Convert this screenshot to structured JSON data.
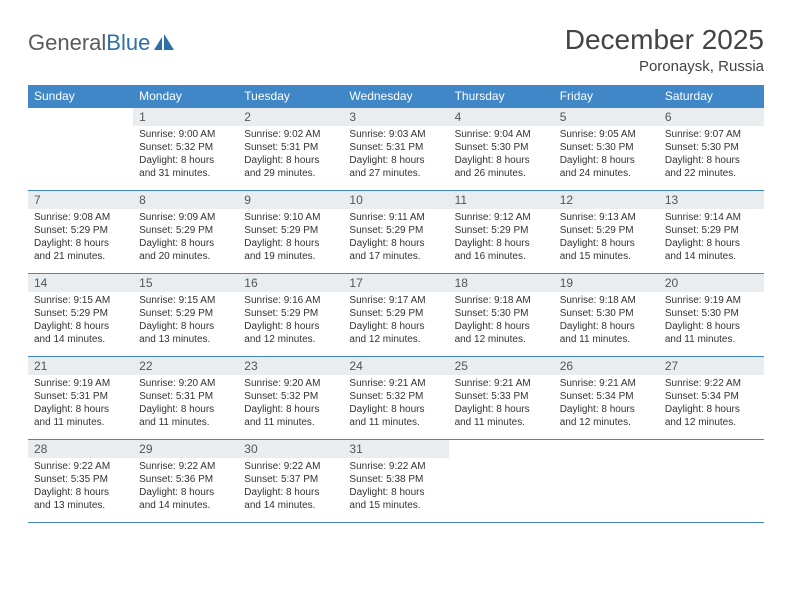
{
  "brand": {
    "part1": "General",
    "part2": "Blue"
  },
  "title": "December 2025",
  "location": "Poronaysk, Russia",
  "colors": {
    "header_bg": "#3f87c6",
    "header_fg": "#ffffff",
    "daynum_bg": "#e9edf0",
    "border": "#3f87c6",
    "brand_gray": "#5a5a5a",
    "brand_blue": "#2f6fa8"
  },
  "weekdays": [
    "Sunday",
    "Monday",
    "Tuesday",
    "Wednesday",
    "Thursday",
    "Friday",
    "Saturday"
  ],
  "weeks": [
    [
      {
        "num": "",
        "sunrise": "",
        "sunset": "",
        "daylight": "",
        "empty": true
      },
      {
        "num": "1",
        "sunrise": "Sunrise: 9:00 AM",
        "sunset": "Sunset: 5:32 PM",
        "daylight": "Daylight: 8 hours and 31 minutes."
      },
      {
        "num": "2",
        "sunrise": "Sunrise: 9:02 AM",
        "sunset": "Sunset: 5:31 PM",
        "daylight": "Daylight: 8 hours and 29 minutes."
      },
      {
        "num": "3",
        "sunrise": "Sunrise: 9:03 AM",
        "sunset": "Sunset: 5:31 PM",
        "daylight": "Daylight: 8 hours and 27 minutes."
      },
      {
        "num": "4",
        "sunrise": "Sunrise: 9:04 AM",
        "sunset": "Sunset: 5:30 PM",
        "daylight": "Daylight: 8 hours and 26 minutes."
      },
      {
        "num": "5",
        "sunrise": "Sunrise: 9:05 AM",
        "sunset": "Sunset: 5:30 PM",
        "daylight": "Daylight: 8 hours and 24 minutes."
      },
      {
        "num": "6",
        "sunrise": "Sunrise: 9:07 AM",
        "sunset": "Sunset: 5:30 PM",
        "daylight": "Daylight: 8 hours and 22 minutes."
      }
    ],
    [
      {
        "num": "7",
        "sunrise": "Sunrise: 9:08 AM",
        "sunset": "Sunset: 5:29 PM",
        "daylight": "Daylight: 8 hours and 21 minutes."
      },
      {
        "num": "8",
        "sunrise": "Sunrise: 9:09 AM",
        "sunset": "Sunset: 5:29 PM",
        "daylight": "Daylight: 8 hours and 20 minutes."
      },
      {
        "num": "9",
        "sunrise": "Sunrise: 9:10 AM",
        "sunset": "Sunset: 5:29 PM",
        "daylight": "Daylight: 8 hours and 19 minutes."
      },
      {
        "num": "10",
        "sunrise": "Sunrise: 9:11 AM",
        "sunset": "Sunset: 5:29 PM",
        "daylight": "Daylight: 8 hours and 17 minutes."
      },
      {
        "num": "11",
        "sunrise": "Sunrise: 9:12 AM",
        "sunset": "Sunset: 5:29 PM",
        "daylight": "Daylight: 8 hours and 16 minutes."
      },
      {
        "num": "12",
        "sunrise": "Sunrise: 9:13 AM",
        "sunset": "Sunset: 5:29 PM",
        "daylight": "Daylight: 8 hours and 15 minutes."
      },
      {
        "num": "13",
        "sunrise": "Sunrise: 9:14 AM",
        "sunset": "Sunset: 5:29 PM",
        "daylight": "Daylight: 8 hours and 14 minutes."
      }
    ],
    [
      {
        "num": "14",
        "sunrise": "Sunrise: 9:15 AM",
        "sunset": "Sunset: 5:29 PM",
        "daylight": "Daylight: 8 hours and 14 minutes."
      },
      {
        "num": "15",
        "sunrise": "Sunrise: 9:15 AM",
        "sunset": "Sunset: 5:29 PM",
        "daylight": "Daylight: 8 hours and 13 minutes."
      },
      {
        "num": "16",
        "sunrise": "Sunrise: 9:16 AM",
        "sunset": "Sunset: 5:29 PM",
        "daylight": "Daylight: 8 hours and 12 minutes."
      },
      {
        "num": "17",
        "sunrise": "Sunrise: 9:17 AM",
        "sunset": "Sunset: 5:29 PM",
        "daylight": "Daylight: 8 hours and 12 minutes."
      },
      {
        "num": "18",
        "sunrise": "Sunrise: 9:18 AM",
        "sunset": "Sunset: 5:30 PM",
        "daylight": "Daylight: 8 hours and 12 minutes."
      },
      {
        "num": "19",
        "sunrise": "Sunrise: 9:18 AM",
        "sunset": "Sunset: 5:30 PM",
        "daylight": "Daylight: 8 hours and 11 minutes."
      },
      {
        "num": "20",
        "sunrise": "Sunrise: 9:19 AM",
        "sunset": "Sunset: 5:30 PM",
        "daylight": "Daylight: 8 hours and 11 minutes."
      }
    ],
    [
      {
        "num": "21",
        "sunrise": "Sunrise: 9:19 AM",
        "sunset": "Sunset: 5:31 PM",
        "daylight": "Daylight: 8 hours and 11 minutes."
      },
      {
        "num": "22",
        "sunrise": "Sunrise: 9:20 AM",
        "sunset": "Sunset: 5:31 PM",
        "daylight": "Daylight: 8 hours and 11 minutes."
      },
      {
        "num": "23",
        "sunrise": "Sunrise: 9:20 AM",
        "sunset": "Sunset: 5:32 PM",
        "daylight": "Daylight: 8 hours and 11 minutes."
      },
      {
        "num": "24",
        "sunrise": "Sunrise: 9:21 AM",
        "sunset": "Sunset: 5:32 PM",
        "daylight": "Daylight: 8 hours and 11 minutes."
      },
      {
        "num": "25",
        "sunrise": "Sunrise: 9:21 AM",
        "sunset": "Sunset: 5:33 PM",
        "daylight": "Daylight: 8 hours and 11 minutes."
      },
      {
        "num": "26",
        "sunrise": "Sunrise: 9:21 AM",
        "sunset": "Sunset: 5:34 PM",
        "daylight": "Daylight: 8 hours and 12 minutes."
      },
      {
        "num": "27",
        "sunrise": "Sunrise: 9:22 AM",
        "sunset": "Sunset: 5:34 PM",
        "daylight": "Daylight: 8 hours and 12 minutes."
      }
    ],
    [
      {
        "num": "28",
        "sunrise": "Sunrise: 9:22 AM",
        "sunset": "Sunset: 5:35 PM",
        "daylight": "Daylight: 8 hours and 13 minutes."
      },
      {
        "num": "29",
        "sunrise": "Sunrise: 9:22 AM",
        "sunset": "Sunset: 5:36 PM",
        "daylight": "Daylight: 8 hours and 14 minutes."
      },
      {
        "num": "30",
        "sunrise": "Sunrise: 9:22 AM",
        "sunset": "Sunset: 5:37 PM",
        "daylight": "Daylight: 8 hours and 14 minutes."
      },
      {
        "num": "31",
        "sunrise": "Sunrise: 9:22 AM",
        "sunset": "Sunset: 5:38 PM",
        "daylight": "Daylight: 8 hours and 15 minutes."
      },
      {
        "num": "",
        "sunrise": "",
        "sunset": "",
        "daylight": "",
        "empty": true
      },
      {
        "num": "",
        "sunrise": "",
        "sunset": "",
        "daylight": "",
        "empty": true
      },
      {
        "num": "",
        "sunrise": "",
        "sunset": "",
        "daylight": "",
        "empty": true
      }
    ]
  ]
}
